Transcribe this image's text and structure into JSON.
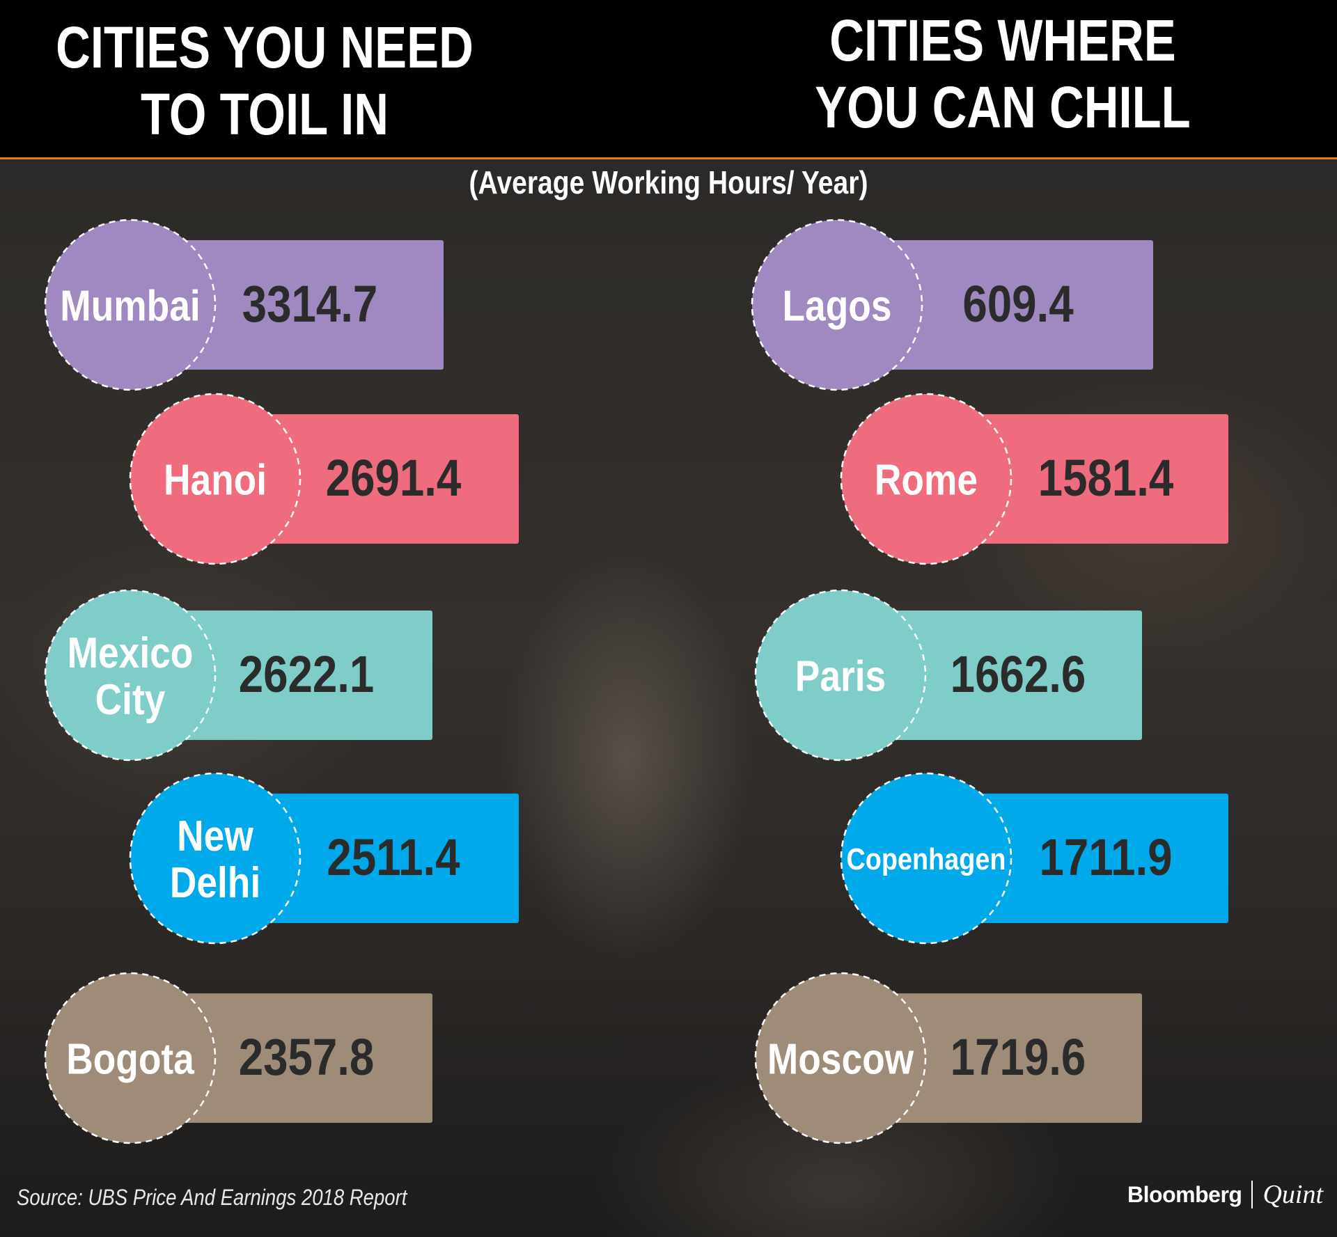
{
  "header": {
    "left_title_line1": "CITIES YOU NEED",
    "left_title_line2": "TO TOIL IN",
    "right_title_line1": "CITIES WHERE",
    "right_title_line2": "YOU CAN CHILL"
  },
  "subtitle": "(Average Working Hours/ Year)",
  "footer": {
    "source": "Source: UBS Price And Earnings 2018 Report",
    "logo_bloomberg": "Bloomberg",
    "logo_quint": "Quint"
  },
  "colors": {
    "row1": "#a088c0",
    "row2": "#ef6b7e",
    "row3": "#7ecdc8",
    "row4": "#00a9ea",
    "row5": "#9e8b78",
    "header_border": "#e07b25"
  },
  "chart_data": [
    {
      "type": "bar",
      "title": "CITIES YOU NEED TO TOIL IN",
      "subtitle": "(Average Working Hours/ Year)",
      "categories": [
        "Mumbai",
        "Hanoi",
        "Mexico City",
        "New Delhi",
        "Bogota"
      ],
      "values": [
        3314.7,
        2691.4,
        2622.1,
        2511.4,
        2357.8
      ]
    },
    {
      "type": "bar",
      "title": "CITIES WHERE YOU CAN CHILL",
      "subtitle": "(Average Working Hours/ Year)",
      "categories": [
        "Lagos",
        "Rome",
        "Paris",
        "Copenhagen",
        "Moscow"
      ],
      "values": [
        609.4,
        1581.4,
        1662.6,
        1711.9,
        1719.6
      ]
    }
  ]
}
